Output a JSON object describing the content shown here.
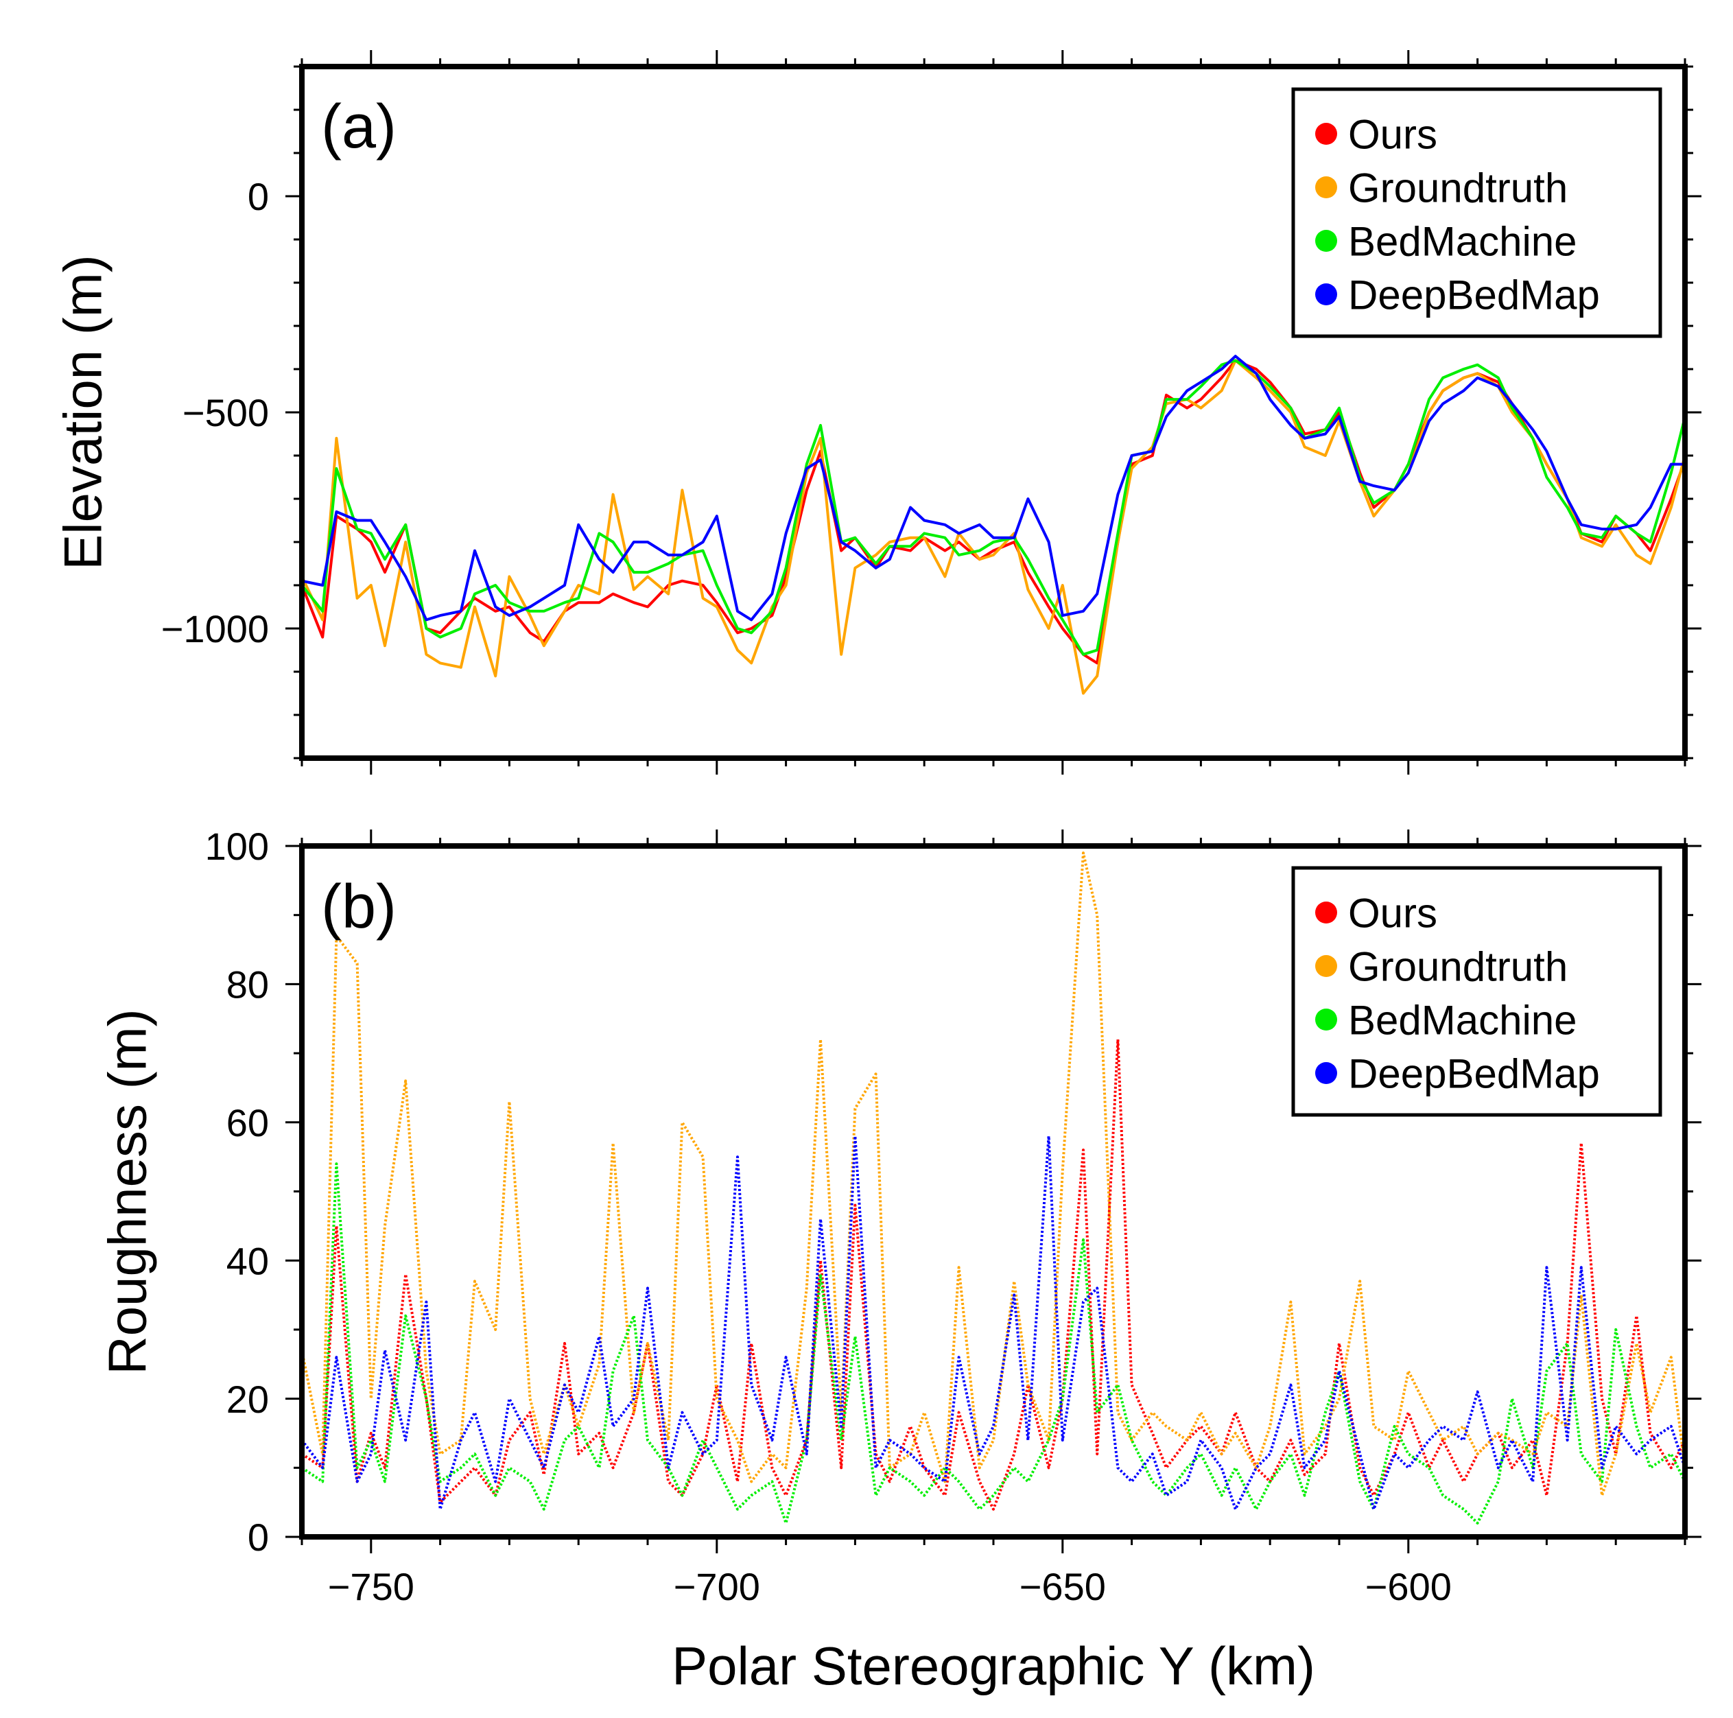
{
  "colors": {
    "ours": "#ff0000",
    "groundtruth": "#ffa500",
    "bedmachine": "#00ee00",
    "deepbedmap": "#0000ff"
  },
  "chart_data": [
    {
      "type": "line",
      "panel_label": "(a)",
      "title": "",
      "xlabel": "",
      "ylabel": "Elevation (m)",
      "xlim": [
        -760,
        -560
      ],
      "ylim": [
        -1300,
        300
      ],
      "xticks": [
        "-750",
        "-700",
        "-650",
        "-600"
      ],
      "yticks": [
        {
          "value": 0,
          "label": "0"
        },
        {
          "value": -500,
          "label": "−500"
        },
        {
          "value": -1000,
          "label": "−1000"
        }
      ],
      "legend": {
        "placement": "top-right",
        "entries": [
          "Ours",
          "Groundtruth",
          "BedMachine",
          "DeepBedMap"
        ]
      },
      "x": [
        -760,
        -757,
        -755,
        -752,
        -750,
        -748,
        -745,
        -742,
        -740,
        -737,
        -735,
        -732,
        -730,
        -727,
        -725,
        -722,
        -720,
        -717,
        -715,
        -712,
        -710,
        -707,
        -705,
        -702,
        -700,
        -697,
        -695,
        -692,
        -690,
        -687,
        -685,
        -682,
        -680,
        -677,
        -675,
        -672,
        -670,
        -667,
        -665,
        -662,
        -660,
        -657,
        -655,
        -652,
        -650,
        -647,
        -645,
        -642,
        -640,
        -637,
        -635,
        -632,
        -630,
        -627,
        -625,
        -622,
        -620,
        -617,
        -615,
        -612,
        -610,
        -607,
        -605,
        -602,
        -600,
        -597,
        -595,
        -592,
        -590,
        -587,
        -585,
        -582,
        -580,
        -577,
        -575,
        -572,
        -570,
        -567,
        -565,
        -562,
        -560
      ],
      "series": [
        {
          "name": "Ours",
          "key": "ours",
          "values": [
            -900,
            -1020,
            -740,
            -770,
            -800,
            -870,
            -760,
            -1000,
            -1010,
            -960,
            -930,
            -960,
            -950,
            -1010,
            -1030,
            -960,
            -940,
            -940,
            -920,
            -940,
            -950,
            -900,
            -890,
            -900,
            -940,
            -1010,
            -1000,
            -970,
            -880,
            -680,
            -590,
            -820,
            -790,
            -860,
            -810,
            -820,
            -790,
            -820,
            -800,
            -840,
            -820,
            -800,
            -870,
            -950,
            -1000,
            -1060,
            -1080,
            -800,
            -620,
            -600,
            -460,
            -490,
            -470,
            -420,
            -380,
            -400,
            -430,
            -490,
            -550,
            -540,
            -500,
            -640,
            -720,
            -680,
            -620,
            -500,
            -450,
            -420,
            -410,
            -430,
            -480,
            -560,
            -620,
            -700,
            -780,
            -800,
            -740,
            -780,
            -820,
            -700,
            -610
          ]
        },
        {
          "name": "Groundtruth",
          "key": "groundtruth",
          "values": [
            -880,
            -980,
            -560,
            -930,
            -900,
            -1040,
            -800,
            -1060,
            -1080,
            -1090,
            -950,
            -1110,
            -880,
            -970,
            -1040,
            -960,
            -900,
            -920,
            -690,
            -910,
            -880,
            -920,
            -680,
            -930,
            -950,
            -1050,
            -1080,
            -950,
            -900,
            -640,
            -560,
            -1060,
            -860,
            -830,
            -800,
            -790,
            -790,
            -880,
            -780,
            -840,
            -830,
            -780,
            -910,
            -1000,
            -900,
            -1150,
            -1110,
            -800,
            -630,
            -580,
            -480,
            -470,
            -490,
            -450,
            -380,
            -420,
            -450,
            -500,
            -580,
            -600,
            -520,
            -660,
            -740,
            -680,
            -640,
            -500,
            -450,
            -420,
            -410,
            -440,
            -500,
            -560,
            -620,
            -700,
            -790,
            -810,
            -760,
            -830,
            -850,
            -720,
            -600
          ]
        },
        {
          "name": "BedMachine",
          "key": "bedmachine",
          "values": [
            -900,
            -960,
            -630,
            -770,
            -780,
            -840,
            -760,
            -1000,
            -1020,
            -1000,
            -920,
            -900,
            -940,
            -960,
            -960,
            -940,
            -930,
            -780,
            -800,
            -870,
            -870,
            -850,
            -830,
            -820,
            -900,
            -1000,
            -1010,
            -960,
            -860,
            -620,
            -530,
            -800,
            -790,
            -850,
            -810,
            -810,
            -780,
            -790,
            -830,
            -820,
            -800,
            -790,
            -840,
            -930,
            -980,
            -1060,
            -1050,
            -780,
            -600,
            -590,
            -470,
            -470,
            -440,
            -390,
            -380,
            -410,
            -440,
            -490,
            -560,
            -540,
            -490,
            -650,
            -710,
            -680,
            -620,
            -470,
            -420,
            -400,
            -390,
            -420,
            -490,
            -560,
            -650,
            -720,
            -780,
            -790,
            -740,
            -780,
            -800,
            -640,
            -510
          ]
        },
        {
          "name": "DeepBedMap",
          "key": "deepbedmap",
          "values": [
            -890,
            -900,
            -730,
            -750,
            -750,
            -800,
            -880,
            -980,
            -970,
            -960,
            -820,
            -950,
            -970,
            -950,
            -930,
            -900,
            -760,
            -840,
            -870,
            -800,
            -800,
            -830,
            -830,
            -800,
            -740,
            -960,
            -980,
            -920,
            -780,
            -630,
            -610,
            -800,
            -820,
            -860,
            -840,
            -720,
            -750,
            -760,
            -780,
            -760,
            -790,
            -790,
            -700,
            -800,
            -970,
            -960,
            -920,
            -690,
            -600,
            -590,
            -510,
            -450,
            -430,
            -400,
            -370,
            -410,
            -470,
            -530,
            -560,
            -550,
            -510,
            -660,
            -670,
            -680,
            -640,
            -520,
            -480,
            -450,
            -420,
            -440,
            -480,
            -540,
            -590,
            -700,
            -760,
            -770,
            -770,
            -760,
            -720,
            -620,
            -620
          ]
        }
      ]
    },
    {
      "type": "line",
      "panel_label": "(b)",
      "title": "",
      "xlabel": "Polar Stereographic Y (km)",
      "ylabel": "Roughness (m)",
      "xlim": [
        -760,
        -560
      ],
      "ylim": [
        0,
        100
      ],
      "xticks": [
        "−750",
        "−700",
        "−650",
        "−600"
      ],
      "yticks": [
        {
          "value": 0,
          "label": "0"
        },
        {
          "value": 20,
          "label": "20"
        },
        {
          "value": 40,
          "label": "40"
        },
        {
          "value": 60,
          "label": "60"
        },
        {
          "value": 80,
          "label": "80"
        },
        {
          "value": 100,
          "label": "100"
        }
      ],
      "legend": {
        "placement": "top-right",
        "entries": [
          "Ours",
          "Groundtruth",
          "BedMachine",
          "DeepBedMap"
        ]
      },
      "x": [
        -760,
        -757,
        -755,
        -752,
        -750,
        -748,
        -745,
        -742,
        -740,
        -737,
        -735,
        -732,
        -730,
        -727,
        -725,
        -722,
        -720,
        -717,
        -715,
        -712,
        -710,
        -707,
        -705,
        -702,
        -700,
        -697,
        -695,
        -692,
        -690,
        -687,
        -685,
        -682,
        -680,
        -677,
        -675,
        -672,
        -670,
        -667,
        -665,
        -662,
        -660,
        -657,
        -655,
        -652,
        -650,
        -647,
        -645,
        -642,
        -640,
        -637,
        -635,
        -632,
        -630,
        -627,
        -625,
        -622,
        -620,
        -617,
        -615,
        -612,
        -610,
        -607,
        -605,
        -602,
        -600,
        -597,
        -595,
        -592,
        -590,
        -587,
        -585,
        -582,
        -580,
        -577,
        -575,
        -572,
        -570,
        -567,
        -565,
        -562,
        -560
      ],
      "series": [
        {
          "name": "Ours",
          "key": "ours",
          "values": [
            12,
            10,
            45,
            8,
            15,
            10,
            38,
            20,
            5,
            8,
            10,
            6,
            14,
            18,
            9,
            28,
            12,
            15,
            10,
            18,
            28,
            8,
            6,
            12,
            22,
            8,
            28,
            10,
            6,
            14,
            40,
            10,
            48,
            12,
            8,
            16,
            10,
            6,
            18,
            8,
            4,
            12,
            22,
            10,
            20,
            56,
            12,
            72,
            22,
            15,
            10,
            14,
            16,
            12,
            18,
            10,
            8,
            14,
            9,
            12,
            28,
            10,
            6,
            12,
            18,
            10,
            14,
            8,
            12,
            15,
            10,
            14,
            6,
            28,
            57,
            20,
            12,
            32,
            15,
            10,
            14
          ]
        },
        {
          "name": "Groundtruth",
          "key": "groundtruth",
          "values": [
            27,
            12,
            87,
            83,
            20,
            45,
            66,
            24,
            12,
            14,
            37,
            30,
            63,
            20,
            12,
            22,
            16,
            25,
            57,
            18,
            28,
            14,
            60,
            55,
            20,
            14,
            8,
            12,
            10,
            36,
            72,
            18,
            62,
            67,
            10,
            12,
            18,
            8,
            39,
            10,
            14,
            37,
            22,
            14,
            53,
            99,
            90,
            18,
            14,
            18,
            16,
            14,
            18,
            12,
            15,
            10,
            16,
            34,
            12,
            16,
            20,
            37,
            16,
            14,
            24,
            18,
            14,
            16,
            12,
            15,
            14,
            12,
            18,
            16,
            35,
            6,
            12,
            28,
            18,
            26,
            10
          ]
        },
        {
          "name": "BedMachine",
          "key": "bedmachine",
          "values": [
            10,
            8,
            54,
            10,
            14,
            8,
            32,
            20,
            8,
            10,
            12,
            6,
            10,
            8,
            4,
            14,
            16,
            10,
            24,
            32,
            14,
            10,
            6,
            14,
            10,
            4,
            6,
            8,
            2,
            14,
            38,
            14,
            29,
            6,
            10,
            8,
            6,
            10,
            8,
            4,
            6,
            10,
            8,
            14,
            20,
            43,
            18,
            22,
            14,
            8,
            6,
            10,
            12,
            6,
            10,
            4,
            8,
            12,
            6,
            18,
            24,
            8,
            4,
            16,
            12,
            10,
            6,
            4,
            2,
            8,
            20,
            10,
            24,
            28,
            12,
            8,
            30,
            16,
            10,
            12,
            8
          ]
        },
        {
          "name": "DeepBedMap",
          "key": "deepbedmap",
          "values": [
            14,
            10,
            26,
            8,
            12,
            27,
            14,
            34,
            4,
            14,
            18,
            8,
            20,
            14,
            10,
            22,
            18,
            29,
            16,
            20,
            36,
            10,
            18,
            12,
            14,
            55,
            22,
            14,
            26,
            12,
            46,
            16,
            58,
            10,
            14,
            12,
            10,
            8,
            26,
            12,
            16,
            35,
            14,
            58,
            14,
            34,
            36,
            10,
            8,
            12,
            6,
            8,
            14,
            10,
            4,
            10,
            12,
            22,
            10,
            14,
            24,
            12,
            4,
            12,
            10,
            14,
            16,
            14,
            21,
            10,
            14,
            8,
            39,
            14,
            39,
            10,
            16,
            12,
            14,
            16,
            10
          ]
        }
      ]
    }
  ]
}
